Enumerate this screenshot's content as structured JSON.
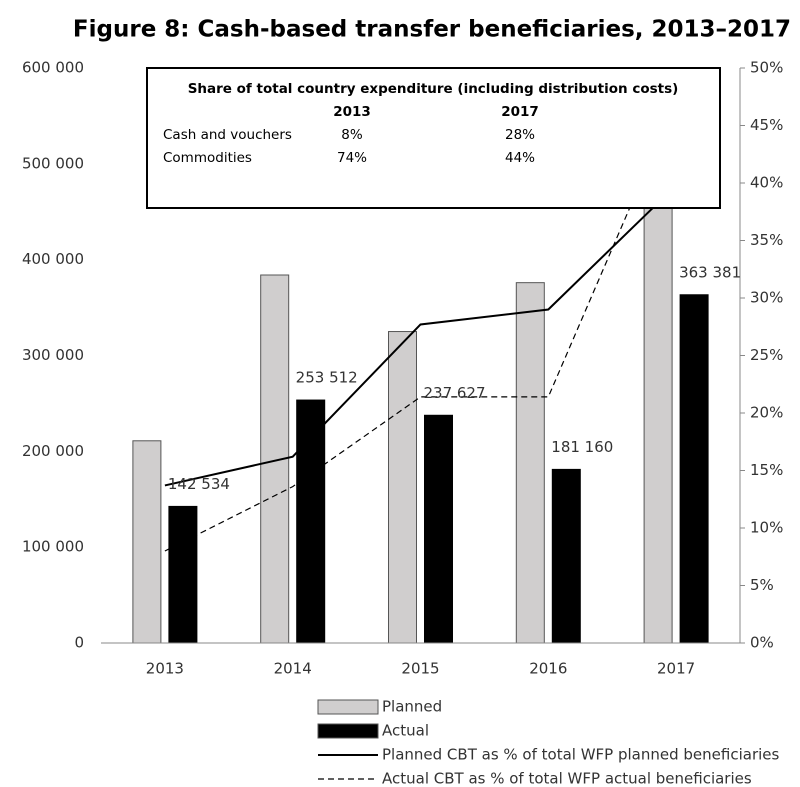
{
  "chart_data": {
    "type": "bar",
    "title": "Figure 8: Cash-based transfer beneficiaries, 2013–2017",
    "categories": [
      "2013",
      "2014",
      "2015",
      "2016",
      "2017"
    ],
    "series": [
      {
        "name": "Planned",
        "type": "bar",
        "color": "#d0cece",
        "values": [
          211000,
          384000,
          325000,
          376000,
          504000
        ]
      },
      {
        "name": "Actual",
        "type": "bar",
        "color": "#000000",
        "values": [
          142534,
          253512,
          237627,
          181160,
          363381
        ],
        "value_labels": [
          "142 534",
          "253 512",
          "237 627",
          "181 160",
          "363 381"
        ]
      },
      {
        "name": "Planned CBT as % of total WFP planned beneficiaries",
        "type": "line",
        "axis": "y2",
        "color": "#000000",
        "dashed": false,
        "values": [
          13.7,
          16.2,
          27.7,
          29.0,
          39.8
        ]
      },
      {
        "name": "Actual CBT as % of total WFP actual beneficiaries",
        "type": "line",
        "axis": "y2",
        "color": "#000000",
        "dashed": true,
        "values": [
          8.0,
          13.6,
          21.4,
          21.4,
          47.2
        ]
      }
    ],
    "ylim": [
      0,
      600000
    ],
    "yticks": [
      0,
      {
        "value": 100000,
        "label": "100 000"
      },
      {
        "value": 200000,
        "label": "200 000"
      },
      {
        "value": 300000,
        "label": "300 000"
      },
      {
        "value": 400000,
        "label": "400 000"
      },
      {
        "value": 500000,
        "label": "500 000"
      },
      {
        "value": 600000,
        "label": "600 000"
      }
    ],
    "y2lim": [
      0,
      50
    ],
    "y2ticks": [
      {
        "value": 0,
        "label": "0%"
      },
      {
        "value": 5,
        "label": "5%"
      },
      {
        "value": 10,
        "label": "10%"
      },
      {
        "value": 15,
        "label": "15%"
      },
      {
        "value": 20,
        "label": "20%"
      },
      {
        "value": 25,
        "label": "25%"
      },
      {
        "value": 30,
        "label": "30%"
      },
      {
        "value": 35,
        "label": "35%"
      },
      {
        "value": 40,
        "label": "40%"
      },
      {
        "value": 45,
        "label": "45%"
      },
      {
        "value": 50,
        "label": "50%"
      }
    ],
    "legend": "bottom",
    "annotation": {
      "title": "Share of total country expenditure (including distribution costs)",
      "columns": [
        "2013",
        "2017"
      ],
      "rows": [
        {
          "label": "Cash and vouchers",
          "values": [
            "8%",
            "28%"
          ]
        },
        {
          "label": "Commodities",
          "values": [
            "74%",
            "44%"
          ]
        }
      ]
    }
  }
}
